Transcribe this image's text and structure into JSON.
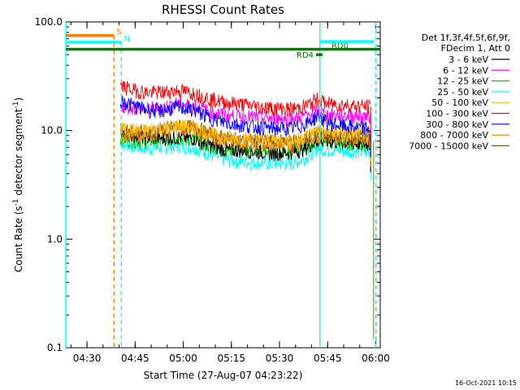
{
  "chart_data": {
    "type": "line",
    "title": "RHESSI Count Rates",
    "xlabel": "Start Time (27-Aug-07 04:23:22)",
    "ylabel": "Count Rate (s⁻¹ detector segment⁻¹)",
    "ylabel_main": "Count Rate (s",
    "ylabel_sup1": "-1",
    "ylabel_mid": " detector segment",
    "ylabel_sup2": "-1",
    "ylabel_end": ")",
    "yscale": "log",
    "ylim": [
      0.1,
      100.0
    ],
    "xlim_minutes": [
      0,
      98
    ],
    "x_ticks": [
      {
        "label": "04:30",
        "minutes": 6.6
      },
      {
        "label": "04:45",
        "minutes": 21.6
      },
      {
        "label": "05:00",
        "minutes": 36.6
      },
      {
        "label": "05:15",
        "minutes": 51.6
      },
      {
        "label": "05:30",
        "minutes": 66.6
      },
      {
        "label": "05:45",
        "minutes": 81.6
      },
      {
        "label": "06:00",
        "minutes": 96.6
      }
    ],
    "y_ticks": [
      {
        "label": "100.0",
        "value": 100
      },
      {
        "label": "10.0",
        "value": 10
      },
      {
        "label": "1.0",
        "value": 1
      },
      {
        "label": "0.1",
        "value": 0.1
      }
    ],
    "legend_header": [
      "Det 1f,3f,4f,5f,6f,9f,",
      "FDecim 1, Att 0"
    ],
    "legend_position": "right",
    "x_time_points": [
      17,
      20,
      25,
      30,
      35,
      40,
      45,
      50,
      55,
      60,
      65,
      70,
      73,
      76,
      79,
      80,
      81,
      85,
      90,
      95
    ],
    "series": [
      {
        "name": "3 - 6 keV",
        "color": "#000000",
        "values": [
          10.0,
          9.3,
          8.6,
          8.5,
          8.7,
          8.5,
          7.3,
          6.6,
          6.6,
          6.4,
          6.2,
          6.3,
          6.6,
          7.3,
          8.2,
          8.2,
          8.0,
          7.9,
          7.6,
          7.5
        ]
      },
      {
        "name": "6 - 12 keV",
        "color": "#ff00ff",
        "values": [
          17.0,
          16.5,
          15.8,
          16.3,
          17.8,
          16.8,
          15.0,
          13.8,
          13.5,
          13.2,
          13.0,
          13.0,
          13.3,
          14.0,
          15.5,
          14.5,
          14.0,
          13.9,
          13.7,
          13.6
        ]
      },
      {
        "name": "12 - 25 keV",
        "color": "#00cc00",
        "values": [
          8.5,
          8.2,
          8.0,
          8.2,
          8.6,
          8.3,
          7.2,
          6.8,
          6.6,
          6.6,
          6.5,
          6.5,
          6.8,
          7.3,
          8.3,
          8.2,
          8.0,
          7.9,
          7.7,
          7.6
        ]
      },
      {
        "name": "25 - 50 keV",
        "color": "#00ffff",
        "values": [
          7.8,
          7.3,
          6.9,
          7.0,
          7.3,
          7.0,
          6.0,
          5.4,
          5.2,
          5.1,
          5.0,
          5.0,
          5.3,
          6.0,
          7.0,
          6.8,
          6.7,
          6.6,
          6.5,
          6.4
        ]
      },
      {
        "name": "50 - 100 keV",
        "color": "#ffbb00",
        "values": [
          10.5,
          10.2,
          10.0,
          10.5,
          11.2,
          10.8,
          9.3,
          8.7,
          8.4,
          8.3,
          8.2,
          8.2,
          8.6,
          9.3,
          10.2,
          10.0,
          9.7,
          9.6,
          9.4,
          9.3
        ]
      },
      {
        "name": "100 - 300 keV",
        "color": "#ff0000",
        "values": [
          26.0,
          24.0,
          22.5,
          22.5,
          23.5,
          22.0,
          19.5,
          18.2,
          17.5,
          16.6,
          16.1,
          15.8,
          16.3,
          17.5,
          20.0,
          18.5,
          17.8,
          17.5,
          17.0,
          16.6
        ]
      },
      {
        "name": "300 - 800 keV",
        "color": "#0000ff",
        "values": [
          19.0,
          17.5,
          15.5,
          15.2,
          16.5,
          15.5,
          13.0,
          11.8,
          11.2,
          10.8,
          10.5,
          10.5,
          11.0,
          12.0,
          14.0,
          12.8,
          12.0,
          11.2,
          10.8,
          10.4
        ]
      },
      {
        "name": "800 - 7000 keV",
        "color": "#ff8800",
        "values": [
          9.2,
          9.2,
          9.3,
          9.8,
          10.5,
          10.3,
          8.9,
          8.0,
          7.7,
          7.6,
          7.5,
          7.5,
          7.9,
          8.4,
          9.2,
          9.0,
          8.8,
          8.7,
          8.6,
          8.5
        ]
      },
      {
        "name": "7000 - 15000 keV",
        "color": "#8b5a00",
        "values": [
          10.0,
          9.8,
          9.8,
          10.3,
          11.0,
          10.8,
          9.3,
          8.5,
          8.2,
          8.1,
          8.0,
          8.0,
          8.3,
          8.9,
          9.6,
          9.4,
          9.2,
          9.1,
          9.0,
          8.9
        ]
      }
    ],
    "annotations": [
      {
        "label": "S",
        "color": "#ff8000",
        "start_min": 0,
        "end_min": 15,
        "value": 75
      },
      {
        "label": "N",
        "color": "#00ffff",
        "start_min": 0,
        "end_min": 17.3,
        "value": 65
      },
      {
        "label": "",
        "color": "#008000",
        "start_min": 0,
        "end_min": 98,
        "value": 56
      },
      {
        "label": "RD0",
        "color": "#008000",
        "start_min": 80,
        "end_min": 82,
        "value": 56
      },
      {
        "label": "RD4",
        "color": "#008000",
        "start_min": 78,
        "end_min": 80,
        "value": 50
      },
      {
        "label": "",
        "color": "#00ffff",
        "start_min": 79.2,
        "end_min": 96,
        "value": 66
      }
    ],
    "vertical_markers": [
      {
        "minutes": 0,
        "color": "#00ffff",
        "style": "solid",
        "from": 0.1,
        "to": 100
      },
      {
        "minutes": 15,
        "color": "#ff8000",
        "style": "dashed",
        "from": 0.1,
        "to": 75
      },
      {
        "minutes": 17.3,
        "color": "#00ffff",
        "style": "dashed",
        "from": 0.1,
        "to": 65
      },
      {
        "minutes": 79.2,
        "color": "#00ffff",
        "style": "solid",
        "from": 0.1,
        "to": 100
      },
      {
        "minutes": 95.9,
        "color": "#ff8000",
        "style": "solid",
        "from": 0.12,
        "to": 8
      },
      {
        "minutes": 96.6,
        "color": "#00ffff",
        "style": "dashed",
        "from": 0.1,
        "to": 100
      }
    ],
    "timestamp": "16-Oct-2021 10:15"
  }
}
